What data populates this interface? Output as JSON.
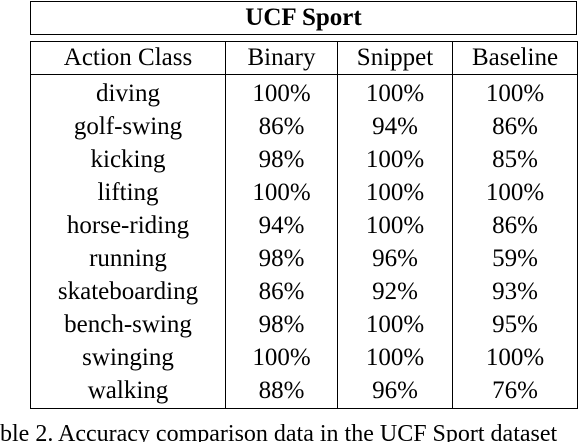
{
  "table": {
    "title": "UCF Sport",
    "headers": [
      "Action Class",
      "Binary",
      "Snippet",
      "Baseline"
    ],
    "rows": [
      [
        "diving",
        "100%",
        "100%",
        "100%"
      ],
      [
        "golf-swing",
        "86%",
        "94%",
        "86%"
      ],
      [
        "kicking",
        "98%",
        "100%",
        "85%"
      ],
      [
        "lifting",
        "100%",
        "100%",
        "100%"
      ],
      [
        "horse-riding",
        "94%",
        "100%",
        "86%"
      ],
      [
        "running",
        "98%",
        "96%",
        "59%"
      ],
      [
        "skateboarding",
        "86%",
        "92%",
        "93%"
      ],
      [
        "bench-swing",
        "98%",
        "100%",
        "95%"
      ],
      [
        "swinging",
        "100%",
        "100%",
        "100%"
      ],
      [
        "walking",
        "88%",
        "96%",
        "76%"
      ]
    ]
  },
  "caption": "ble 2. Accuracy comparison data in the UCF Sport dataset"
}
